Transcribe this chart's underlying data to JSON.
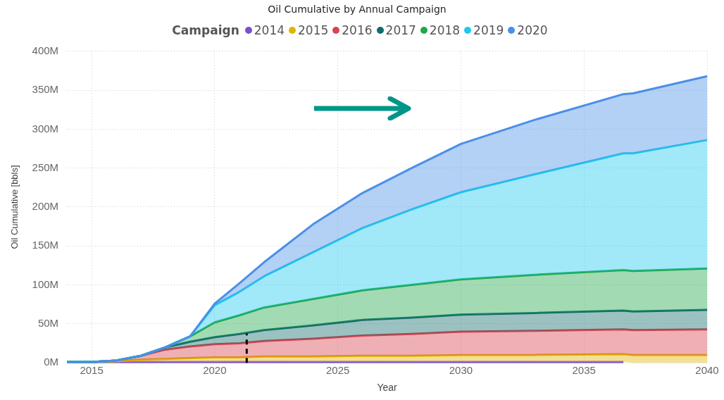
{
  "chart_data": {
    "type": "area",
    "stacked": true,
    "title": "Oil Cumulative by Annual Campaign",
    "xlabel": "Year",
    "ylabel": "Oil Cumulative [bbls]",
    "legend_title": "Campaign",
    "legend": "top",
    "grid": true,
    "x": [
      2014,
      2015,
      2016,
      2017,
      2018,
      2019,
      2020,
      2021,
      2022,
      2024,
      2026,
      2028,
      2030,
      2033,
      2036.6,
      2037,
      2040
    ],
    "xlim": [
      2014,
      2040
    ],
    "xticks": [
      2015,
      2020,
      2025,
      2030,
      2035,
      2040
    ],
    "ylim": [
      0,
      400
    ],
    "yticks": [
      {
        "value": 0,
        "label": "0M"
      },
      {
        "value": 50,
        "label": "50M"
      },
      {
        "value": 100,
        "label": "100M"
      },
      {
        "value": 150,
        "label": "150M"
      },
      {
        "value": 200,
        "label": "200M"
      },
      {
        "value": 250,
        "label": "250M"
      },
      {
        "value": 300,
        "label": "300M"
      },
      {
        "value": 350,
        "label": "350M"
      },
      {
        "value": 400,
        "label": "400M"
      }
    ],
    "ref_lines": [
      {
        "axis": "x",
        "value": 2021.3,
        "color": "#000000",
        "line_style": "dashed"
      }
    ],
    "series": [
      {
        "name": "2014",
        "color": "#7b4fd0",
        "values": [
          1,
          1,
          1,
          1,
          1,
          1,
          1,
          1,
          1,
          1,
          1,
          1,
          1,
          1,
          1,
          null,
          null
        ]
      },
      {
        "name": "2015",
        "color": "#e0b400",
        "values": [
          0,
          0,
          1,
          3,
          4,
          5,
          6,
          6,
          7,
          7,
          8,
          8,
          9,
          9,
          10,
          10,
          10
        ]
      },
      {
        "name": "2016",
        "color": "#d9434f",
        "values": [
          0,
          0,
          1,
          5,
          12,
          15,
          17,
          18,
          20,
          23,
          26,
          28,
          30,
          31,
          32,
          32,
          33
        ]
      },
      {
        "name": "2017",
        "color": "#136b6b",
        "values": [
          0,
          0,
          0,
          0,
          3,
          6,
          9,
          12,
          14,
          17,
          20,
          21,
          22,
          23,
          24,
          24,
          25
        ]
      },
      {
        "name": "2018",
        "color": "#1ea84a",
        "values": [
          0,
          0,
          0,
          0,
          0,
          7,
          19,
          24,
          29,
          34,
          38,
          42,
          45,
          49,
          52,
          52,
          53
        ]
      },
      {
        "name": "2019",
        "color": "#1ec8ee",
        "values": [
          0,
          0,
          0,
          0,
          0,
          0,
          22,
          30,
          40,
          60,
          80,
          97,
          112,
          129,
          150,
          151,
          165
        ]
      },
      {
        "name": "2020",
        "color": "#4a8fe8",
        "values": [
          0,
          0,
          0,
          0,
          0,
          0,
          2,
          11,
          18,
          36,
          45,
          53,
          62,
          70,
          76,
          77,
          82
        ]
      }
    ]
  }
}
